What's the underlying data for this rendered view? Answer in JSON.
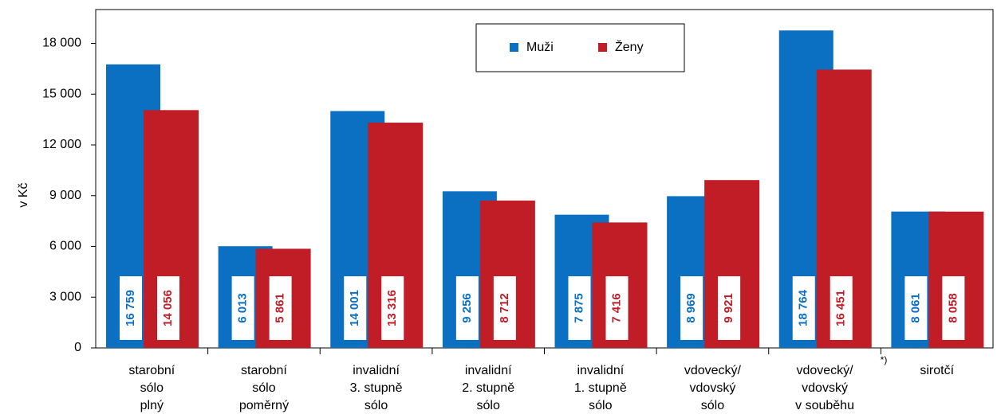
{
  "chart_data": {
    "type": "bar",
    "categories": [
      [
        "starobní",
        "sólo",
        "plný"
      ],
      [
        "starobní",
        "sólo",
        "poměrný"
      ],
      [
        "invalidní",
        "3. stupně",
        "sólo"
      ],
      [
        "invalidní",
        "2. stupně",
        "sólo"
      ],
      [
        "invalidní",
        "1. stupně",
        "sólo"
      ],
      [
        "vdovecký/",
        "vdovský",
        "sólo"
      ],
      [
        "vdovecký/",
        "vdovský",
        "v souběhu"
      ],
      [
        "sirotčí"
      ]
    ],
    "series": [
      {
        "name": "Muži",
        "color": "#0b6fc2",
        "values": [
          16759,
          6013,
          14001,
          9256,
          7875,
          8969,
          18764,
          8061
        ],
        "value_labels": [
          "16 759",
          "6 013",
          "14 001",
          "9 256",
          "7 875",
          "8 969",
          "18 764",
          "8 061"
        ]
      },
      {
        "name": "Ženy",
        "color": "#c01d27",
        "values": [
          14056,
          5861,
          13316,
          8712,
          7416,
          9921,
          16451,
          8058
        ],
        "value_labels": [
          "14 056",
          "5 861",
          "13 316",
          "8 712",
          "7 416",
          "9 921",
          "16 451",
          "8 058"
        ]
      }
    ],
    "ylabel": "v Kč",
    "annotation": "*)",
    "ylim": [
      0,
      20000
    ],
    "yticks": [
      0,
      {
        "value": 3000,
        "label": "3 000"
      },
      {
        "value": 6000,
        "label": "6 000"
      },
      {
        "value": 9000,
        "label": "9 000"
      },
      {
        "value": 12000,
        "label": "12 000"
      },
      {
        "value": 15000,
        "label": "15 000"
      },
      {
        "value": 18000,
        "label": "18 000"
      }
    ],
    "legend": "top"
  }
}
